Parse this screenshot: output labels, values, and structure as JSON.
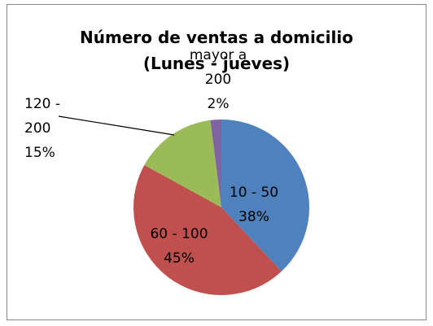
{
  "chart_data": {
    "type": "pie",
    "title": "Número de ventas a domicilio",
    "subtitle": "(Lunes - jueves)",
    "categories": [
      "10 - 50",
      "60 - 100",
      "120 - 200",
      "mayor a 200"
    ],
    "values": [
      38,
      45,
      15,
      2
    ],
    "value_labels": [
      "38%",
      "45%",
      "15%",
      "2%"
    ],
    "colors": [
      "#4f81bd",
      "#c0504d",
      "#9bbb59",
      "#8064a2"
    ]
  }
}
